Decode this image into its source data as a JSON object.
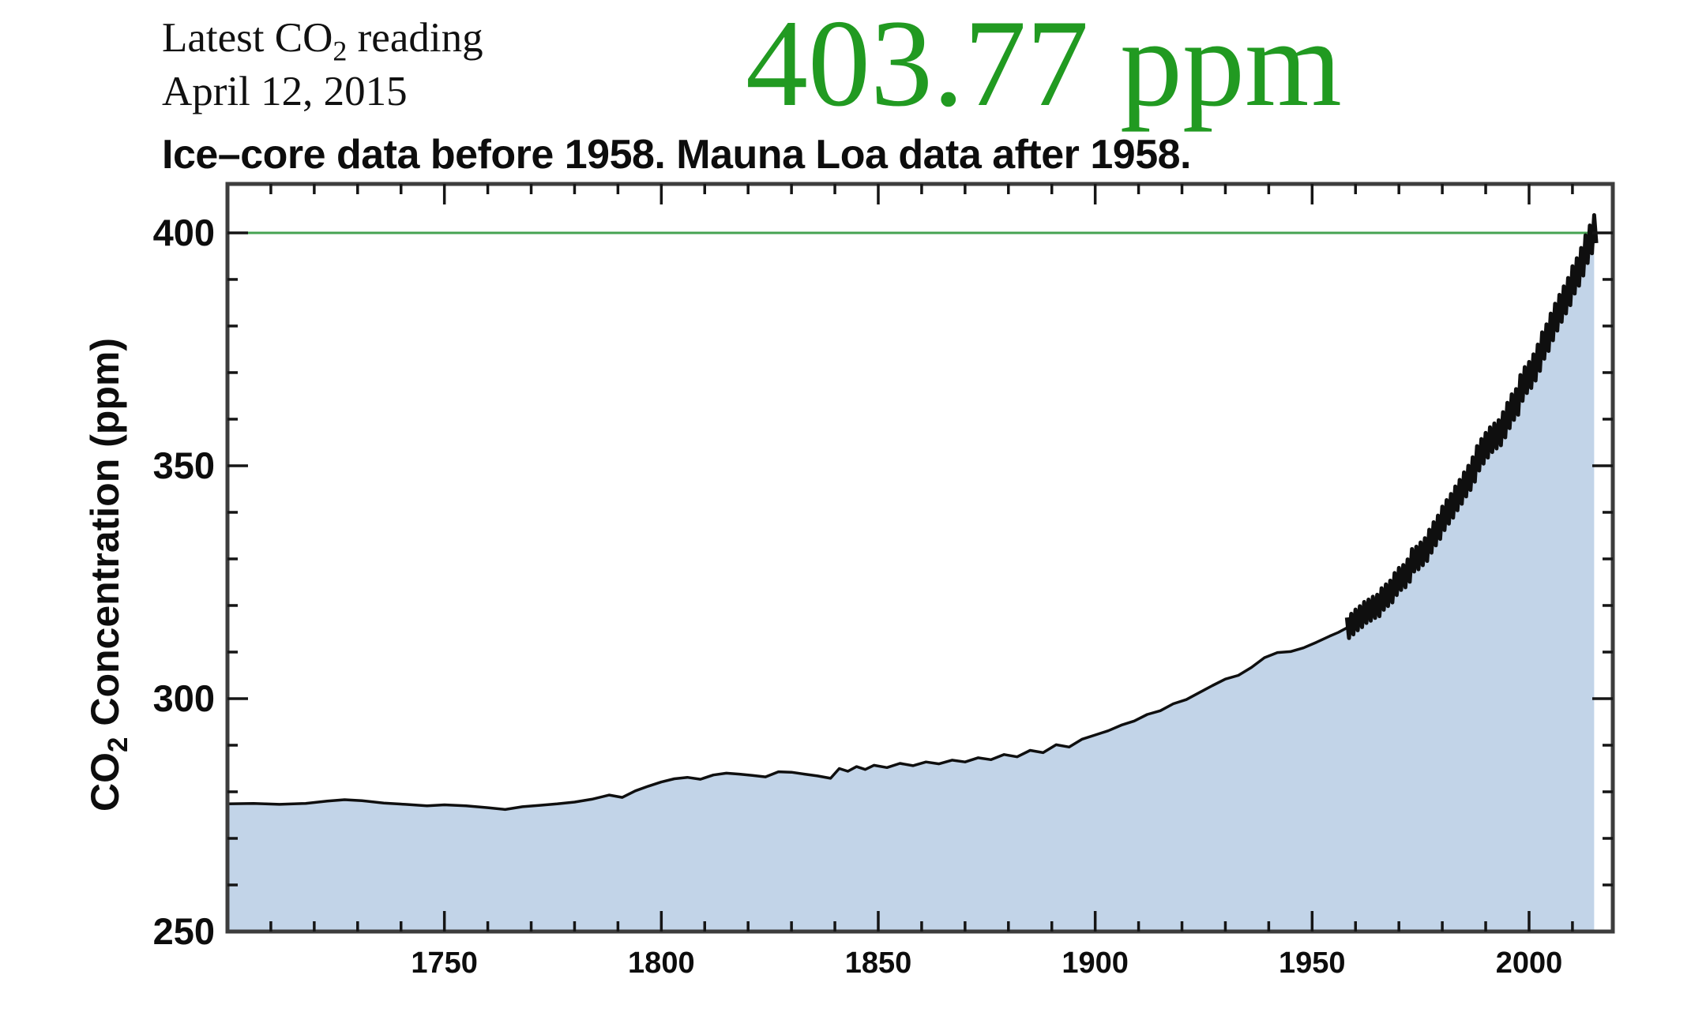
{
  "header": {
    "latest_reading_line": {
      "prefix": "Latest CO",
      "sub": "2",
      "suffix": " reading"
    },
    "date_line": "April 12, 2015",
    "reading_value": "403.77 ppm",
    "subtitle": "Ice–core data before 1958. Mauna Loa data after 1958."
  },
  "colors": {
    "reading_green": "#219a21",
    "reference_line_green": "#46a352",
    "fill_blue": "#c2d4e8",
    "series_black": "#0f0f0f",
    "frame_gray": "#3d3d3d",
    "tick_black": "#151515",
    "label_black": "#0d0d0d"
  },
  "chart_data": {
    "type": "area",
    "title": "",
    "xlabel": "",
    "ylabel": "CO2 Concentration (ppm)",
    "ylabel_parts": {
      "prefix": "CO",
      "sub": "2",
      "suffix": " Concentration (ppm)"
    },
    "xlim": [
      1700,
      2019.3
    ],
    "ylim": [
      250,
      410.5
    ],
    "grid": false,
    "legend": "none",
    "x_ticks": {
      "major": [
        1750,
        1800,
        1850,
        1900,
        1950,
        2000
      ],
      "minor_step": 10
    },
    "y_ticks": {
      "major": [
        250,
        300,
        350,
        400
      ],
      "minor_step": 10
    },
    "reference_line": {
      "value": 400,
      "axis": "y"
    },
    "latest_reading": {
      "value_ppm": 403.77,
      "date": "April 12, 2015"
    },
    "series": [
      {
        "name": "Ice-core data (before 1958)",
        "type": "line",
        "x": [
          1700,
          1706,
          1712,
          1718,
          1723,
          1727,
          1731,
          1736,
          1741,
          1746,
          1750,
          1755,
          1760,
          1764,
          1768,
          1772,
          1776,
          1780,
          1784,
          1788,
          1791,
          1794,
          1797,
          1800,
          1803,
          1806,
          1809,
          1812,
          1815,
          1818,
          1821,
          1824,
          1827,
          1830,
          1833,
          1836,
          1839,
          1841,
          1843,
          1845,
          1847,
          1849,
          1852,
          1855,
          1858,
          1861,
          1864,
          1867,
          1870,
          1873,
          1876,
          1879,
          1882,
          1885,
          1888,
          1891,
          1894,
          1897,
          1900,
          1903,
          1906,
          1909,
          1912,
          1915,
          1918,
          1921,
          1924,
          1927,
          1930,
          1933,
          1936,
          1939,
          1942,
          1945,
          1948,
          1951,
          1954,
          1956,
          1958
        ],
        "y": [
          277.4,
          277.5,
          277.3,
          277.5,
          278.0,
          278.3,
          278.1,
          277.6,
          277.3,
          277.0,
          277.2,
          277.0,
          276.6,
          276.2,
          276.8,
          277.1,
          277.4,
          277.8,
          278.4,
          279.3,
          278.8,
          280.2,
          281.2,
          282.1,
          282.8,
          283.1,
          282.7,
          283.6,
          284.0,
          283.8,
          283.5,
          283.2,
          284.3,
          284.2,
          283.8,
          283.4,
          282.9,
          285.0,
          284.4,
          285.4,
          284.8,
          285.7,
          285.2,
          286.1,
          285.6,
          286.4,
          286.0,
          286.8,
          286.4,
          287.3,
          286.9,
          288.0,
          287.5,
          288.9,
          288.4,
          290.1,
          289.6,
          291.3,
          292.2,
          293.1,
          294.3,
          295.2,
          296.6,
          297.4,
          298.9,
          299.8,
          301.3,
          302.8,
          304.2,
          305.0,
          306.7,
          308.8,
          309.9,
          310.1,
          310.9,
          312.1,
          313.4,
          314.2,
          315.2
        ]
      },
      {
        "name": "Mauna Loa data (after 1958)",
        "type": "seasonal_band",
        "x_start": 1958,
        "x_step": 1,
        "means": [
          315.2,
          316.0,
          316.9,
          317.6,
          318.5,
          319.0,
          319.6,
          320.0,
          321.4,
          322.2,
          323.0,
          324.6,
          325.7,
          326.3,
          327.5,
          329.7,
          330.2,
          331.1,
          332.0,
          333.8,
          335.4,
          336.8,
          338.7,
          340.1,
          341.4,
          343.0,
          344.4,
          346.0,
          347.4,
          349.2,
          351.6,
          353.1,
          354.4,
          355.6,
          356.4,
          357.1,
          358.8,
          360.8,
          362.6,
          363.7,
          366.7,
          368.4,
          369.5,
          371.1,
          373.2,
          375.8,
          377.5,
          379.8,
          381.9,
          383.8,
          385.6,
          387.4,
          389.9,
          391.6,
          393.8,
          396.5,
          398.6,
          400.8
        ],
        "seasonal_amplitude": [
          2.2,
          3.0
        ]
      }
    ]
  }
}
